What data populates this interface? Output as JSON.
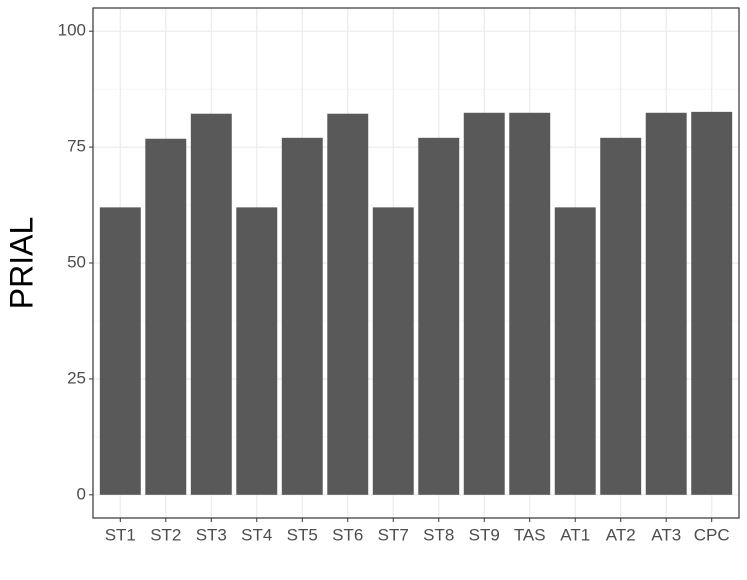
{
  "chart_data": {
    "type": "bar",
    "y_label": "PRIAL",
    "categories": [
      "ST1",
      "ST2",
      "ST3",
      "ST4",
      "ST5",
      "ST6",
      "ST7",
      "ST8",
      "ST9",
      "TAS",
      "AT1",
      "AT2",
      "AT3",
      "CPC"
    ],
    "values": [
      62,
      76.8,
      82.2,
      62,
      77,
      82.2,
      62,
      77,
      82.4,
      82.4,
      62,
      77,
      82.4,
      82.6
    ],
    "color": "#595959",
    "ylim": [
      -5,
      105
    ],
    "yticks": [
      0,
      25,
      50,
      75,
      100
    ],
    "grid": true
  }
}
